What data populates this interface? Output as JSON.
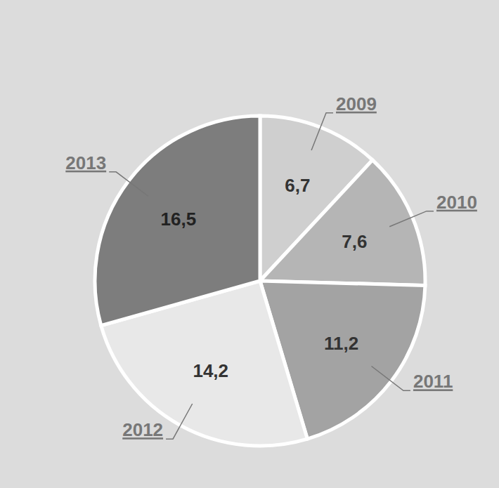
{
  "chart_data": {
    "type": "pie",
    "categories": [
      "2009",
      "2010",
      "2011",
      "2012",
      "2013"
    ],
    "values": [
      6.7,
      7.6,
      11.2,
      14.2,
      16.5
    ],
    "value_labels": [
      "6,7",
      "7,6",
      "11,2",
      "14,2",
      "16,5"
    ],
    "colors": [
      "#cfcfcf",
      "#b5b5b5",
      "#a3a3a3",
      "#e8e8e8",
      "#7d7d7d"
    ],
    "data_labels": true
  }
}
